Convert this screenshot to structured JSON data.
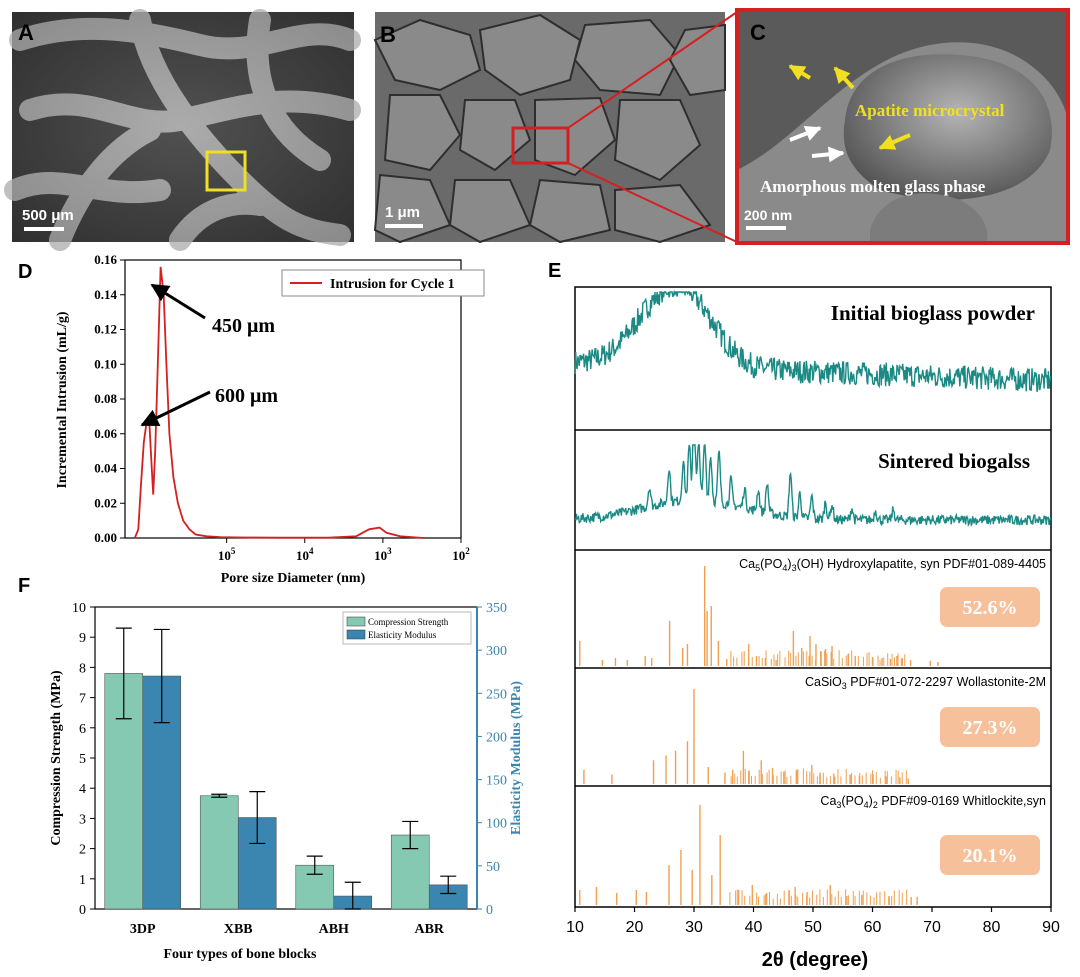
{
  "panels": {
    "A": {
      "label": "A",
      "scale": "500 μm"
    },
    "B": {
      "label": "B",
      "scale": "1 μm"
    },
    "C": {
      "label": "C",
      "scale": "200 nm",
      "annot_apatite": "Apatite microcrystal",
      "annot_glass": "Amorphous molten glass phase"
    }
  },
  "colors": {
    "red": "#d42020",
    "yellow": "#f0e020",
    "teal": "#1b8a85",
    "orange": "#f0a050",
    "green_bar": "#86c9b2",
    "blue_bar": "#3a86b0",
    "badge": "#f6c09a"
  },
  "chart_data": [
    {
      "id": "D",
      "type": "line",
      "label": "D",
      "title": "",
      "xlabel": "Pore size Diameter (nm)",
      "ylabel": "Incremental Intrusion (mL/g)",
      "xscale": "log-reversed",
      "xlim": [
        2000000,
        100
      ],
      "ylim": [
        0,
        0.16
      ],
      "yticks": [
        "0.00",
        "0.02",
        "0.04",
        "0.06",
        "0.08",
        "0.10",
        "0.12",
        "0.14",
        "0.16"
      ],
      "xticks": [
        {
          "base": "10",
          "exp": "5",
          "value": 100000
        },
        {
          "base": "10",
          "exp": "4",
          "value": 10000
        },
        {
          "base": "10",
          "exp": "3",
          "value": 1000
        },
        {
          "base": "10",
          "exp": "2",
          "value": 100
        }
      ],
      "legend": "Intrusion for Cycle 1",
      "series": [
        {
          "name": "Intrusion for Cycle 1",
          "x": [
            1500000,
            1350000,
            1250000,
            1150000,
            1050000,
            980000,
            920000,
            870000,
            820000,
            760000,
            700000,
            640000,
            590000,
            540000,
            480000,
            420000,
            360000,
            300000,
            250000,
            180000,
            120000,
            60000,
            20000,
            5000,
            2200,
            1500,
            1100,
            900,
            600,
            300
          ],
          "y": [
            0.0,
            0.005,
            0.03,
            0.055,
            0.068,
            0.068,
            0.045,
            0.025,
            0.05,
            0.1,
            0.156,
            0.14,
            0.1,
            0.06,
            0.035,
            0.02,
            0.01,
            0.005,
            0.002,
            0.001,
            0.0005,
            0.0003,
            0.0002,
            0.0002,
            0.001,
            0.005,
            0.006,
            0.003,
            0.001,
            0.0
          ]
        }
      ],
      "annotations": [
        "450 μm",
        "600 μm"
      ]
    },
    {
      "id": "E",
      "type": "line",
      "label": "E",
      "xlabel": "2θ (degree)",
      "xlim": [
        10,
        90
      ],
      "xticks": [
        "10",
        "20",
        "30",
        "40",
        "50",
        "60",
        "70",
        "80",
        "90"
      ],
      "subpanels": [
        {
          "title": "Initial bioglass powder",
          "style": "noisy-amorphous"
        },
        {
          "title": "Sintered biogalss",
          "style": "noisy-crystalline"
        },
        {
          "title": "Ca5(PO4)3(OH) Hydroxylapatite, syn PDF#01-089-4405",
          "formula": [
            "Ca",
            "5",
            "(PO",
            "4",
            ")",
            "3",
            "(OH) Hydroxylapatite, syn PDF#01-089-4405"
          ],
          "percent": "52.6%",
          "peaks": [
            [
              10.8,
              0.25
            ],
            [
              14.6,
              0.06
            ],
            [
              16.8,
              0.08
            ],
            [
              18.8,
              0.06
            ],
            [
              21.8,
              0.1
            ],
            [
              22.9,
              0.08
            ],
            [
              25.9,
              0.45
            ],
            [
              28.1,
              0.18
            ],
            [
              28.9,
              0.22
            ],
            [
              31.8,
              1.0
            ],
            [
              32.2,
              0.55
            ],
            [
              32.9,
              0.6
            ],
            [
              34.1,
              0.25
            ],
            [
              35.5,
              0.07
            ],
            [
              39.2,
              0.22
            ],
            [
              40.5,
              0.1
            ],
            [
              42.0,
              0.08
            ],
            [
              43.8,
              0.06
            ],
            [
              46.7,
              0.35
            ],
            [
              48.1,
              0.18
            ],
            [
              49.5,
              0.3
            ],
            [
              50.5,
              0.22
            ],
            [
              51.3,
              0.15
            ],
            [
              52.1,
              0.17
            ],
            [
              53.2,
              0.2
            ],
            [
              55.9,
              0.12
            ],
            [
              57.1,
              0.1
            ],
            [
              60.0,
              0.09
            ],
            [
              61.6,
              0.08
            ],
            [
              63.0,
              0.07
            ],
            [
              64.1,
              0.1
            ],
            [
              65.0,
              0.08
            ],
            [
              66.4,
              0.06
            ],
            [
              69.7,
              0.05
            ],
            [
              71.0,
              0.04
            ]
          ]
        },
        {
          "title": "CaSiO3 PDF#01-072-2297 Wollastonite-2M",
          "formula": [
            "CaSiO",
            "3",
            " PDF#01-072-2297 Wollastonite-2M"
          ],
          "percent": "27.3%",
          "peaks": [
            [
              11.5,
              0.15
            ],
            [
              16.2,
              0.1
            ],
            [
              23.2,
              0.25
            ],
            [
              25.3,
              0.3
            ],
            [
              26.9,
              0.35
            ],
            [
              28.9,
              0.45
            ],
            [
              30.0,
              1.0
            ],
            [
              32.4,
              0.18
            ],
            [
              35.2,
              0.12
            ],
            [
              36.5,
              0.15
            ],
            [
              38.3,
              0.35
            ],
            [
              39.2,
              0.14
            ],
            [
              41.3,
              0.25
            ],
            [
              43.2,
              0.17
            ],
            [
              45.1,
              0.13
            ],
            [
              47.3,
              0.15
            ],
            [
              49.8,
              0.2
            ],
            [
              51.2,
              0.12
            ],
            [
              53.5,
              0.11
            ],
            [
              56.4,
              0.1
            ],
            [
              57.8,
              0.09
            ],
            [
              60.1,
              0.1
            ],
            [
              62.3,
              0.08
            ],
            [
              64.6,
              0.07
            ],
            [
              66.0,
              0.06
            ]
          ]
        },
        {
          "title": "Ca3(PO4)2 PDF#09-0169 Whitlockite,syn",
          "formula": [
            "Ca",
            "3",
            "(PO",
            "4",
            ")",
            "2",
            " PDF#09-0169 Whitlockite,syn"
          ],
          "percent": "20.1%",
          "peaks": [
            [
              10.8,
              0.15
            ],
            [
              13.6,
              0.18
            ],
            [
              17.0,
              0.12
            ],
            [
              20.3,
              0.15
            ],
            [
              22.0,
              0.13
            ],
            [
              25.8,
              0.4
            ],
            [
              27.8,
              0.55
            ],
            [
              29.7,
              0.35
            ],
            [
              31.0,
              1.0
            ],
            [
              33.0,
              0.3
            ],
            [
              34.4,
              0.7
            ],
            [
              37.5,
              0.15
            ],
            [
              39.8,
              0.2
            ],
            [
              42.2,
              0.12
            ],
            [
              46.0,
              0.15
            ],
            [
              47.0,
              0.18
            ],
            [
              49.0,
              0.13
            ],
            [
              52.9,
              0.2
            ],
            [
              55.7,
              0.09
            ],
            [
              58.2,
              0.1
            ],
            [
              62.8,
              0.09
            ],
            [
              66.5,
              0.08
            ],
            [
              67.5,
              0.08
            ]
          ]
        }
      ]
    },
    {
      "id": "F",
      "type": "bar",
      "label": "F",
      "categories": [
        "3DP",
        "XBB",
        "ABH",
        "ABR"
      ],
      "xlabel": "Four types of bone blocks",
      "ylabel": "Compression Strength (MPa)",
      "y2label": "Elasticity Modulus (MPa)",
      "ylim": [
        0,
        10
      ],
      "y2lim": [
        0,
        350
      ],
      "yticks": [
        "0",
        "1",
        "2",
        "3",
        "4",
        "5",
        "6",
        "7",
        "8",
        "9",
        "10"
      ],
      "y2ticks": [
        "0",
        "50",
        "100",
        "150",
        "200",
        "250",
        "300",
        "350"
      ],
      "series": [
        {
          "name": "Compression Strength",
          "axis": "left",
          "values": [
            7.8,
            3.75,
            1.45,
            2.45
          ],
          "errors": [
            1.5,
            0.05,
            0.3,
            0.45
          ]
        },
        {
          "name": "Elasticity Modulus",
          "axis": "right",
          "values": [
            270,
            106,
            15,
            28
          ],
          "errors": [
            54,
            30,
            16,
            10
          ]
        }
      ]
    }
  ]
}
